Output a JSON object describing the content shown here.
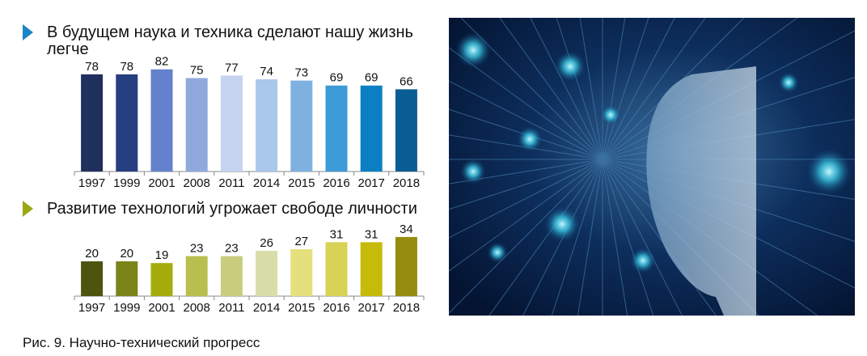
{
  "chart_data": [
    {
      "type": "bar",
      "title": "В будущем наука и техника сделают нашу жизнь легче",
      "categories": [
        "1997",
        "1999",
        "2001",
        "2008",
        "2011",
        "2014",
        "2015",
        "2016",
        "2017",
        "2018"
      ],
      "values": [
        78,
        78,
        82,
        75,
        77,
        74,
        73,
        69,
        69,
        66
      ],
      "colors": [
        "#1f2f5e",
        "#263f80",
        "#6381cc",
        "#8fa9dc",
        "#c5d3ee",
        "#a9c8ea",
        "#7eb1e0",
        "#3c9ad6",
        "#0b7fc4",
        "#0b5d96"
      ],
      "marker_color": "#1a86c8"
    },
    {
      "type": "bar",
      "title": "Развитие технологий угрожает свободе личности",
      "categories": [
        "1997",
        "1999",
        "2001",
        "2008",
        "2011",
        "2014",
        "2015",
        "2016",
        "2017",
        "2018"
      ],
      "values": [
        20,
        20,
        19,
        23,
        23,
        26,
        27,
        31,
        31,
        34
      ],
      "colors": [
        "#4d5410",
        "#7a8419",
        "#a4ad0c",
        "#b9bf4e",
        "#c8cd7e",
        "#d9ddaa",
        "#e6df7e",
        "#d8d256",
        "#c6bb0a",
        "#968c0e"
      ],
      "marker_color": "#9aa814"
    }
  ],
  "caption": "Рис. 9. Научно-технический прогресс",
  "image": {
    "subject": "ai-face-circuit-illustration"
  }
}
